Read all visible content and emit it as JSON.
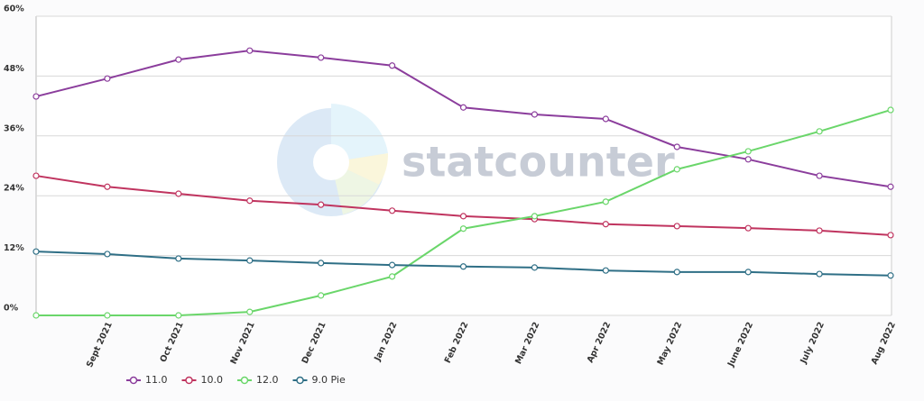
{
  "chart_data": {
    "type": "line",
    "watermark": "statcounter",
    "categories": [
      null,
      "Sept 2021",
      "Oct 2021",
      "Nov 2021",
      "Dec 2021",
      "Jan 2022",
      "Feb 2022",
      "Mar 2022",
      "Apr 2022",
      "May 2022",
      "June 2022",
      "July 2022",
      "Aug 2022"
    ],
    "series": [
      {
        "name": "11.0",
        "color": "#8b3d9c",
        "values": [
          43.9,
          47.5,
          51.3,
          53.1,
          51.7,
          50.1,
          41.7,
          40.3,
          39.4,
          33.8,
          31.3,
          28.0,
          25.8
        ]
      },
      {
        "name": "10.0",
        "color": "#c0345f",
        "values": [
          28.0,
          25.8,
          24.4,
          23.0,
          22.2,
          21.0,
          19.9,
          19.3,
          18.3,
          17.9,
          17.5,
          17.0,
          16.1
        ]
      },
      {
        "name": "12.0",
        "color": "#6ad66a",
        "values": [
          0,
          0,
          0,
          0.7,
          4.0,
          7.8,
          17.4,
          19.9,
          22.8,
          29.3,
          32.9,
          36.9,
          41.2
        ]
      },
      {
        "name": "9.0 Pie",
        "color": "#2f6f86",
        "values": [
          12.8,
          12.3,
          11.4,
          11.0,
          10.5,
          10.1,
          9.8,
          9.6,
          9.0,
          8.7,
          8.7,
          8.3,
          8.0
        ]
      }
    ],
    "ylim": [
      0,
      60
    ],
    "yticks": [
      {
        "value": 0,
        "label": "0%"
      },
      {
        "value": 12,
        "label": "12%"
      },
      {
        "value": 24,
        "label": "24%"
      },
      {
        "value": 36,
        "label": "36%"
      },
      {
        "value": 48,
        "label": "48%"
      },
      {
        "value": 60,
        "label": "60%"
      }
    ],
    "grid": true,
    "legend": "bottom"
  }
}
